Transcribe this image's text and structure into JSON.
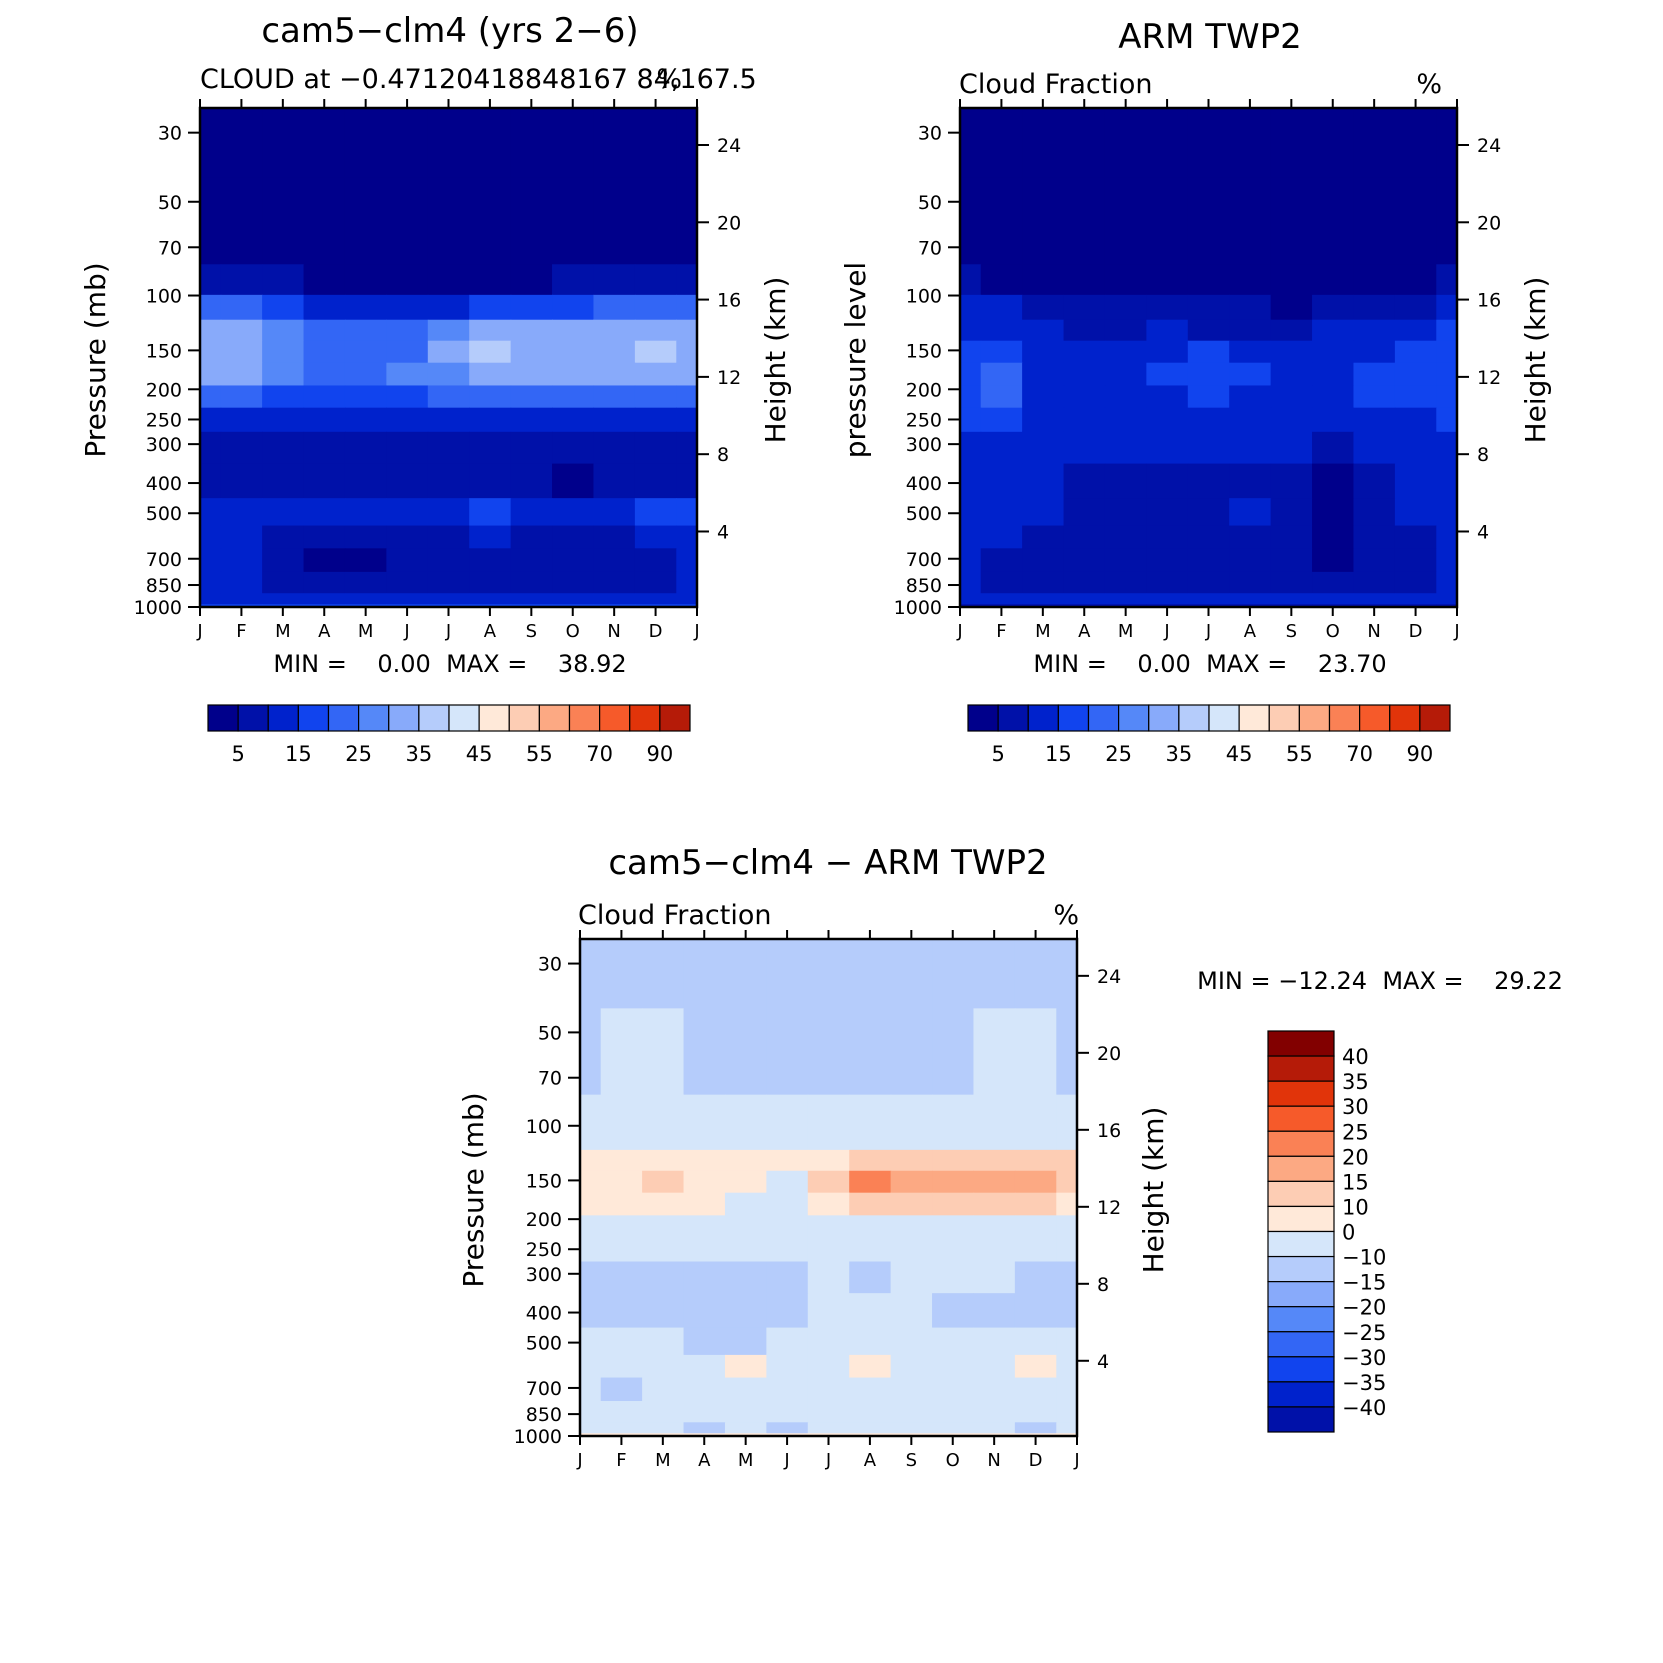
{
  "chart_data": [
    {
      "type": "heatmap",
      "id": "model",
      "title": "cam5−clm4 (yrs 2−6)",
      "subtitle": "CLOUD at −0.47120418848167 84,167.5",
      "units": "%",
      "ylabel": "Pressure (mb)",
      "y2label": "Height (km)",
      "stats": "MIN =    0.00  MAX =    38.92",
      "min": 0.0,
      "max": 38.92,
      "months": [
        "J",
        "F",
        "M",
        "A",
        "M",
        "J",
        "J",
        "A",
        "S",
        "O",
        "N",
        "D",
        "J"
      ],
      "pressure_ticks": [
        30,
        50,
        70,
        100,
        150,
        200,
        250,
        300,
        400,
        500,
        700,
        850,
        1000
      ],
      "height_ticks": [
        24,
        20,
        16,
        12,
        8,
        4
      ],
      "ylim": [
        1000,
        25
      ],
      "levels": [
        0,
        5,
        10,
        15,
        20,
        25,
        30,
        35,
        40,
        45,
        50,
        55,
        60,
        70,
        80,
        90,
        100
      ],
      "grid_pressure": [
        25,
        70,
        90,
        110,
        130,
        150,
        180,
        210,
        250,
        300,
        400,
        500,
        600,
        700,
        850,
        960,
        1000
      ],
      "values": [
        [
          0,
          0,
          0,
          0,
          0,
          0,
          0,
          0,
          0,
          0,
          0,
          0,
          0
        ],
        [
          3,
          2,
          1,
          1,
          1,
          1,
          1,
          1,
          1,
          1,
          1,
          1,
          3
        ],
        [
          8,
          7,
          6,
          4,
          3,
          2,
          2,
          3,
          3,
          5,
          6,
          7,
          9
        ],
        [
          22,
          20,
          16,
          14,
          13,
          12,
          14,
          18,
          17,
          18,
          20,
          22,
          22
        ],
        [
          30,
          31,
          26,
          22,
          21,
          22,
          26,
          31,
          30,
          30,
          32,
          32,
          30
        ],
        [
          32,
          33,
          27,
          22,
          21,
          24,
          30,
          38,
          33,
          32,
          33,
          35,
          33
        ],
        [
          31,
          31,
          26,
          21,
          20,
          25,
          29,
          34,
          31,
          31,
          32,
          33,
          32
        ],
        [
          23,
          22,
          19,
          17,
          16,
          18,
          21,
          23,
          22,
          22,
          23,
          24,
          24
        ],
        [
          13,
          13,
          12,
          11,
          12,
          12,
          12,
          12,
          12,
          12,
          12,
          13,
          13
        ],
        [
          9,
          8,
          8,
          7,
          8,
          8,
          7,
          8,
          8,
          8,
          8,
          8,
          9
        ],
        [
          5,
          5,
          5,
          5,
          5,
          5,
          5,
          5,
          5,
          4,
          5,
          5,
          5
        ],
        [
          12,
          13,
          13,
          11,
          11,
          12,
          14,
          19,
          14,
          12,
          13,
          15,
          15
        ],
        [
          11,
          10,
          9,
          7,
          7,
          9,
          9,
          10,
          9,
          8,
          9,
          10,
          11
        ],
        [
          10,
          10,
          6,
          4,
          4,
          6,
          7,
          9,
          7,
          5,
          6,
          8,
          10
        ],
        [
          10,
          10,
          7,
          5,
          5,
          7,
          8,
          9,
          8,
          6,
          7,
          9,
          10
        ],
        [
          14,
          14,
          14,
          13,
          13,
          14,
          14,
          14,
          14,
          14,
          14,
          14,
          14
        ],
        [
          18,
          18,
          18,
          18,
          18,
          18,
          18,
          18,
          18,
          18,
          18,
          18,
          18
        ]
      ],
      "colorbar": {
        "labels": [
          "5",
          "15",
          "25",
          "35",
          "45",
          "55",
          "70",
          "90"
        ]
      }
    },
    {
      "type": "heatmap",
      "id": "obs",
      "title": "ARM TWP2",
      "subtitle": "Cloud Fraction",
      "units": "%",
      "ylabel": "pressure level",
      "y2label": "Height (km)",
      "stats": "MIN =    0.00  MAX =    23.70",
      "min": 0.0,
      "max": 23.7,
      "months": [
        "J",
        "F",
        "M",
        "A",
        "M",
        "J",
        "J",
        "A",
        "S",
        "O",
        "N",
        "D",
        "J"
      ],
      "pressure_ticks": [
        30,
        50,
        70,
        100,
        150,
        200,
        250,
        300,
        400,
        500,
        700,
        850,
        1000
      ],
      "height_ticks": [
        24,
        20,
        16,
        12,
        8,
        4
      ],
      "ylim": [
        1000,
        25
      ],
      "levels": [
        0,
        5,
        10,
        15,
        20,
        25,
        30,
        35,
        40,
        45,
        50,
        55,
        60,
        70,
        80,
        90,
        100
      ],
      "grid_pressure": [
        25,
        70,
        90,
        110,
        130,
        150,
        180,
        210,
        250,
        300,
        400,
        500,
        600,
        700,
        850,
        960,
        1000
      ],
      "values": [
        [
          0,
          0,
          0,
          0,
          0,
          0,
          0,
          0,
          0,
          0,
          0,
          0,
          0
        ],
        [
          1,
          1,
          1,
          1,
          1,
          1,
          1,
          1,
          1,
          1,
          1,
          1,
          2
        ],
        [
          6,
          4,
          3,
          2,
          2,
          2,
          2,
          2,
          2,
          2,
          3,
          4,
          7
        ],
        [
          12,
          10,
          8,
          6,
          5,
          6,
          5,
          5,
          4,
          5,
          7,
          9,
          12
        ],
        [
          14,
          13,
          11,
          9,
          9,
          10,
          9,
          9,
          8,
          10,
          11,
          13,
          15
        ],
        [
          17,
          19,
          13,
          12,
          12,
          14,
          15,
          13,
          12,
          12,
          14,
          15,
          16
        ],
        [
          18,
          21,
          14,
          12,
          12,
          15,
          17,
          15,
          12,
          13,
          15,
          16,
          17
        ],
        [
          19,
          21,
          14,
          12,
          11,
          14,
          15,
          14,
          12,
          12,
          15,
          16,
          16
        ],
        [
          16,
          17,
          13,
          12,
          11,
          12,
          13,
          12,
          12,
          11,
          13,
          14,
          15
        ],
        [
          13,
          14,
          12,
          11,
          11,
          11,
          12,
          11,
          10,
          9,
          11,
          12,
          13
        ],
        [
          12,
          12,
          11,
          9,
          9,
          9,
          9,
          9,
          7,
          4,
          8,
          10,
          12
        ],
        [
          12,
          11,
          10,
          9,
          8,
          9,
          9,
          10,
          7,
          4,
          9,
          10,
          12
        ],
        [
          11,
          10,
          9,
          8,
          7,
          9,
          8,
          8,
          6,
          4,
          8,
          9,
          11
        ],
        [
          10,
          8,
          7,
          6,
          5,
          6,
          5,
          7,
          6,
          4,
          7,
          8,
          10
        ],
        [
          11,
          9,
          8,
          8,
          8,
          8,
          8,
          8,
          8,
          7,
          8,
          9,
          11
        ],
        [
          12,
          11,
          11,
          11,
          11,
          11,
          11,
          11,
          11,
          11,
          11,
          11,
          12
        ],
        [
          7,
          7,
          7,
          7,
          7,
          7,
          7,
          7,
          7,
          7,
          7,
          7,
          7
        ]
      ],
      "colorbar": {
        "labels": [
          "5",
          "15",
          "25",
          "35",
          "45",
          "55",
          "70",
          "90"
        ]
      }
    },
    {
      "type": "heatmap",
      "id": "diff",
      "title": "cam5−clm4 − ARM TWP2",
      "subtitle": "Cloud Fraction",
      "units": "%",
      "ylabel": "Pressure (mb)",
      "y2label": "Height (km)",
      "stats": "MIN = −12.24  MAX =    29.22",
      "min": -12.24,
      "max": 29.22,
      "months": [
        "J",
        "F",
        "M",
        "A",
        "M",
        "J",
        "J",
        "A",
        "S",
        "O",
        "N",
        "D",
        "J"
      ],
      "pressure_ticks": [
        30,
        50,
        70,
        100,
        150,
        200,
        250,
        300,
        400,
        500,
        700,
        850,
        1000
      ],
      "height_ticks": [
        24,
        20,
        16,
        12,
        8,
        4
      ],
      "ylim": [
        1000,
        25
      ],
      "levels": [
        -50,
        -40,
        -35,
        -30,
        -25,
        -20,
        -15,
        -10,
        0,
        10,
        15,
        20,
        25,
        30,
        35,
        40,
        50
      ],
      "grid_pressure": [
        25,
        70,
        90,
        110,
        130,
        150,
        180,
        210,
        250,
        300,
        400,
        500,
        600,
        700,
        850,
        960,
        1000
      ],
      "values": [
        [
          -2,
          -2,
          -2,
          -2,
          -2,
          -2,
          -2,
          -2,
          -2,
          -2,
          -2,
          -2,
          -2
        ],
        [
          -2,
          2,
          2,
          -1,
          -1,
          -1,
          -1,
          -1,
          -1,
          -1,
          2,
          2,
          -1
        ],
        [
          3,
          4,
          4,
          2,
          2,
          2,
          2,
          2,
          2,
          2,
          4,
          4,
          3
        ],
        [
          8,
          9,
          8,
          7,
          7,
          7,
          7,
          8,
          9,
          9,
          9,
          9,
          9
        ],
        [
          13,
          14,
          14,
          13,
          12,
          10,
          13,
          16,
          18,
          19,
          19,
          18,
          15
        ],
        [
          14,
          14,
          15,
          13,
          12,
          8,
          15,
          29,
          21,
          20,
          21,
          23,
          17
        ],
        [
          12,
          12,
          12,
          10,
          9,
          8,
          13,
          18,
          18,
          17,
          17,
          17,
          14
        ],
        [
          6,
          5,
          5,
          5,
          5,
          5,
          6,
          8,
          9,
          8,
          6,
          7,
          7
        ],
        [
          2,
          2,
          1,
          1,
          1,
          1,
          1,
          1,
          1,
          1,
          1,
          1,
          1
        ],
        [
          -2,
          -8,
          -2,
          -2,
          -2,
          -2,
          2,
          -4,
          2,
          2,
          2,
          -2,
          -2
        ],
        [
          -3,
          -2,
          -3,
          -3,
          -2,
          -2,
          3,
          3,
          3,
          -2,
          -2,
          -3,
          -3
        ],
        [
          1,
          1,
          1,
          -1,
          -1,
          2,
          3,
          4,
          4,
          1,
          1,
          1,
          2
        ],
        [
          2,
          2,
          3,
          3,
          12,
          3,
          3,
          12,
          8,
          3,
          3,
          12,
          3
        ],
        [
          2,
          -2,
          2,
          2,
          2,
          2,
          2,
          2,
          2,
          2,
          2,
          2,
          2
        ],
        [
          2,
          2,
          2,
          2,
          2,
          2,
          2,
          2,
          2,
          2,
          2,
          2,
          2
        ],
        [
          3,
          2,
          2,
          -2,
          2,
          -2,
          2,
          2,
          2,
          2,
          2,
          -2,
          2
        ],
        [
          11,
          11,
          11,
          11,
          11,
          11,
          11,
          11,
          11,
          11,
          11,
          11,
          11
        ]
      ],
      "colorbar": {
        "labels": [
          "40",
          "35",
          "30",
          "25",
          "20",
          "15",
          "10",
          "0",
          "−10",
          "−15",
          "−20",
          "−25",
          "−30",
          "−35",
          "−40"
        ]
      }
    }
  ],
  "colors": {
    "positive_cmap": [
      "#00008B",
      "#0011A9",
      "#0022CC",
      "#1144EE",
      "#3366F5",
      "#5588F8",
      "#88AAFA",
      "#B5CCFB",
      "#D5E6FA",
      "#FFE9D9",
      "#FDCDB4",
      "#FCA983",
      "#FA8155",
      "#F65A2A",
      "#E1340A",
      "#B51B08",
      "#820000"
    ],
    "diff_cmap": [
      "#00008B",
      "#0011A9",
      "#0022CC",
      "#1144EE",
      "#3366F5",
      "#5588F8",
      "#88AAFA",
      "#B5CCFB",
      "#D5E6FA",
      "#FFE9D9",
      "#FDCDB4",
      "#FCA983",
      "#FA8155",
      "#F65A2A",
      "#E1340A",
      "#B51B08",
      "#820000"
    ]
  }
}
